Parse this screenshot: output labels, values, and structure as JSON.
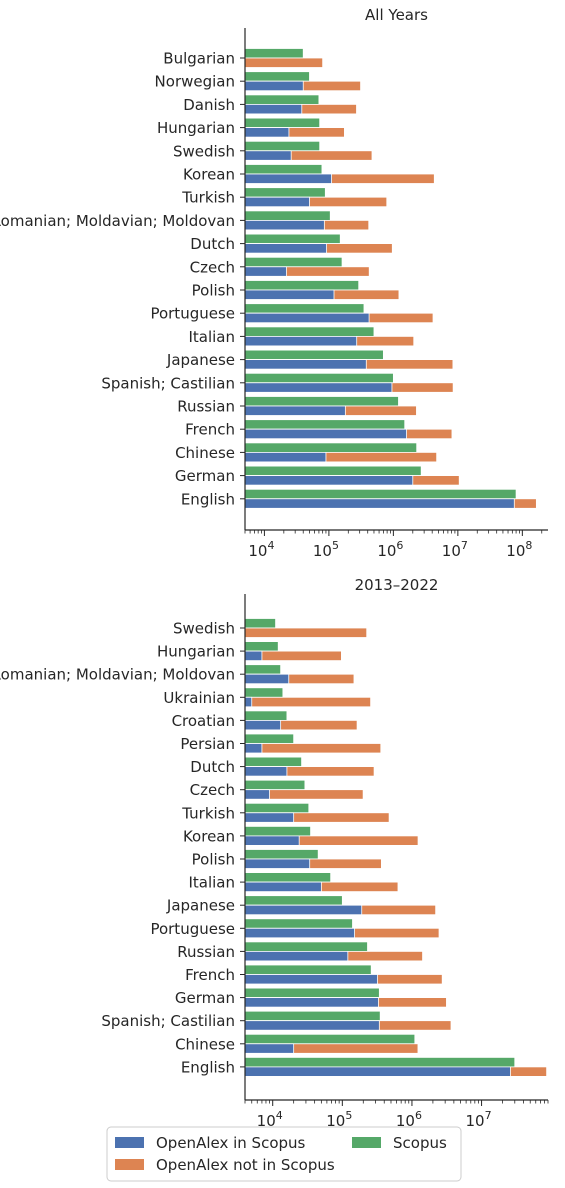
{
  "colors": {
    "openalex_in_scopus": "#4c72b0",
    "openalex_not_in_scopus": "#dd8452",
    "scopus": "#55a868"
  },
  "legend": {
    "items": [
      "OpenAlex in Scopus",
      "OpenAlex not in Scopus",
      "Scopus"
    ]
  },
  "chart_data": [
    {
      "type": "bar",
      "orientation": "horizontal",
      "stacked": "OpenAlex in Scopus + OpenAlex not in Scopus",
      "title": "All Years",
      "xscale": "log",
      "xlim": [
        5000,
        250000000
      ],
      "xticks": [
        {
          "value": 10000,
          "base": "10",
          "exp": "4"
        },
        {
          "value": 100000,
          "base": "10",
          "exp": "5"
        },
        {
          "value": 1000000,
          "base": "10",
          "exp": "6"
        },
        {
          "value": 10000000,
          "base": "10",
          "exp": "7"
        },
        {
          "value": 100000000,
          "base": "10",
          "exp": "8"
        }
      ],
      "categories": [
        "Bulgarian",
        "Norwegian",
        "Danish",
        "Hungarian",
        "Swedish",
        "Korean",
        "Turkish",
        "Romanian; Moldavian; Moldovan",
        "Dutch",
        "Czech",
        "Polish",
        "Portuguese",
        "Italian",
        "Japanese",
        "Spanish; Castilian",
        "Russian",
        "French",
        "Chinese",
        "German",
        "English"
      ],
      "series": [
        {
          "name": "Scopus",
          "values": [
            40000,
            50000,
            70000,
            72000,
            72000,
            78000,
            88000,
            105000,
            150000,
            160000,
            290000,
            350000,
            500000,
            700000,
            1000000,
            1200000,
            1500000,
            2300000,
            2700000,
            80000000
          ]
        },
        {
          "name": "OpenAlex in Scopus",
          "values": [
            5000,
            40000,
            38000,
            24000,
            26000,
            110000,
            50000,
            85000,
            92000,
            22000,
            120000,
            420000,
            270000,
            380000,
            950000,
            180000,
            1600000,
            90000,
            2000000,
            75000000
          ]
        },
        {
          "name": "OpenAlex not in Scopus",
          "values": [
            75000,
            270000,
            230000,
            150000,
            440000,
            4200000,
            740000,
            330000,
            870000,
            400000,
            1100000,
            3700000,
            1800000,
            8000000,
            7500000,
            2100000,
            6500000,
            4600000,
            8500000,
            90000000
          ]
        }
      ]
    },
    {
      "type": "bar",
      "orientation": "horizontal",
      "stacked": "OpenAlex in Scopus + OpenAlex not in Scopus",
      "title": "2013–2022",
      "xscale": "log",
      "xlim": [
        4000,
        90000000
      ],
      "xticks": [
        {
          "value": 10000,
          "base": "10",
          "exp": "4"
        },
        {
          "value": 100000,
          "base": "10",
          "exp": "5"
        },
        {
          "value": 1000000,
          "base": "10",
          "exp": "6"
        },
        {
          "value": 10000000,
          "base": "10",
          "exp": "7"
        },
        {
          "value": 100000000,
          "base": "10",
          "exp": "8"
        }
      ],
      "categories": [
        "Swedish",
        "Hungarian",
        "Romanian; Moldavian; Moldovan",
        "Ukrainian",
        "Croatian",
        "Persian",
        "Dutch",
        "Czech",
        "Turkish",
        "Korean",
        "Polish",
        "Italian",
        "Japanese",
        "Portuguese",
        "Russian",
        "French",
        "German",
        "Spanish; Castilian",
        "Chinese",
        "English"
      ],
      "series": [
        {
          "name": "Scopus",
          "values": [
            11000,
            12000,
            13000,
            14000,
            16000,
            20000,
            26000,
            29000,
            33000,
            35000,
            45000,
            68000,
            100000,
            140000,
            230000,
            260000,
            340000,
            350000,
            1100000,
            30000000
          ]
        },
        {
          "name": "OpenAlex in Scopus",
          "values": [
            4000,
            7000,
            17000,
            5000,
            13000,
            7000,
            16000,
            9000,
            20000,
            24000,
            34000,
            50000,
            190000,
            150000,
            120000,
            320000,
            330000,
            340000,
            20000,
            26000000
          ]
        },
        {
          "name": "OpenAlex not in Scopus",
          "values": [
            220000,
            90000,
            130000,
            250000,
            150000,
            350000,
            270000,
            190000,
            450000,
            1200000,
            330000,
            580000,
            2000000,
            2300000,
            1300000,
            2400000,
            2800000,
            3300000,
            1200000,
            60000000
          ]
        }
      ]
    }
  ]
}
